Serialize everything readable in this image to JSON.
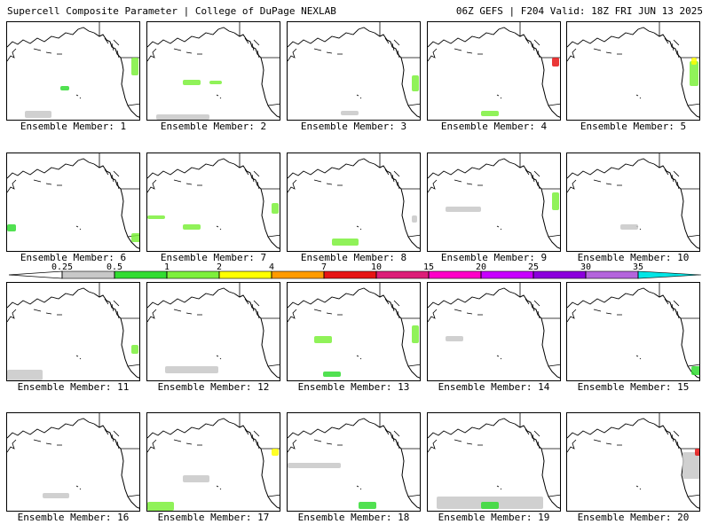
{
  "header": {
    "title": "Supercell Composite Parameter | College of DuPage NEXLAB",
    "run_info": "06Z GEFS | F204 Valid: 18Z FRI JUN 13 2025"
  },
  "caption_prefix": "Ensemble Member:",
  "members": [
    {
      "label": "Ensemble Member: 1"
    },
    {
      "label": "Ensemble Member: 2"
    },
    {
      "label": "Ensemble Member: 3"
    },
    {
      "label": "Ensemble Member: 4"
    },
    {
      "label": "Ensemble Member: 5"
    },
    {
      "label": "Ensemble Member: 6"
    },
    {
      "label": "Ensemble Member: 7"
    },
    {
      "label": "Ensemble Member: 8"
    },
    {
      "label": "Ensemble Member: 9"
    },
    {
      "label": "Ensemble Member: 10"
    },
    {
      "label": "Ensemble Member: 11"
    },
    {
      "label": "Ensemble Member: 12"
    },
    {
      "label": "Ensemble Member: 13"
    },
    {
      "label": "Ensemble Member: 14"
    },
    {
      "label": "Ensemble Member: 15"
    },
    {
      "label": "Ensemble Member: 16"
    },
    {
      "label": "Ensemble Member: 17"
    },
    {
      "label": "Ensemble Member: 18"
    },
    {
      "label": "Ensemble Member: 19"
    },
    {
      "label": "Ensemble Member: 20"
    }
  ],
  "colorbar": {
    "ticks": [
      "0.25",
      "0.5",
      "1",
      "2",
      "4",
      "7",
      "10",
      "15",
      "20",
      "25",
      "30",
      "35"
    ],
    "colors": [
      "#c8c8c8",
      "#32dc32",
      "#7df03c",
      "#ffff00",
      "#ff9b00",
      "#e61414",
      "#dc1e78",
      "#ff00c8",
      "#c800ff",
      "#8c00dc",
      "#b464dc",
      "#00e6e6"
    ]
  }
}
